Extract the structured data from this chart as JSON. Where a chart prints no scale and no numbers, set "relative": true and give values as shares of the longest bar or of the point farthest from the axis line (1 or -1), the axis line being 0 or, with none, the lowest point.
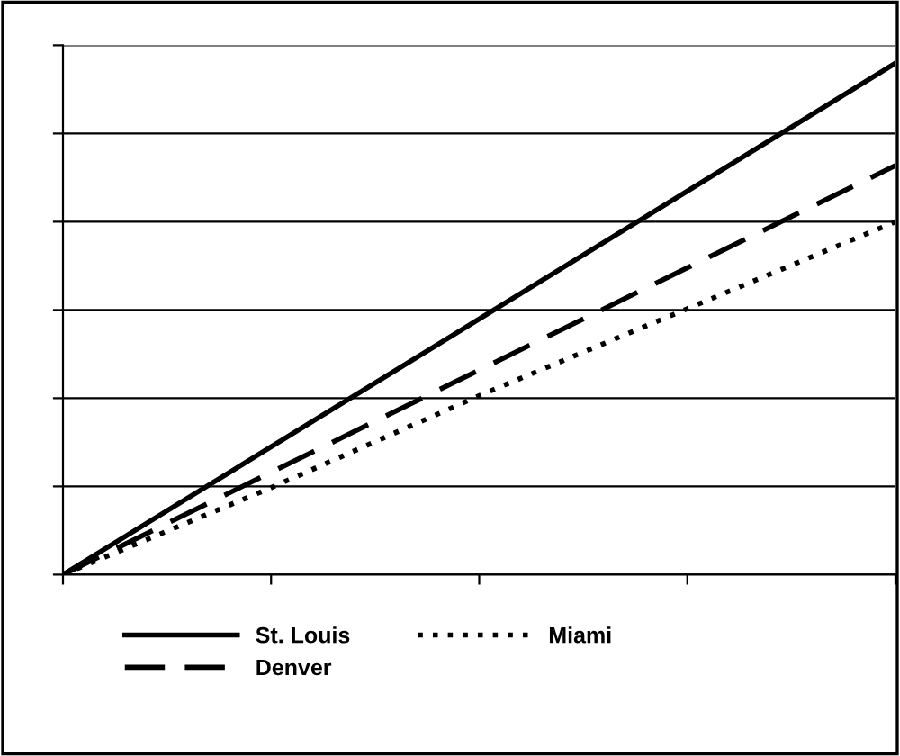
{
  "chart_data": {
    "type": "line",
    "relative": true,
    "categories": [
      null,
      null,
      null,
      null,
      null
    ],
    "series": [
      {
        "name": "St. Louis",
        "color": "#000000",
        "line_style": "solid",
        "values": [
          0,
          0.25,
          0.5,
          0.75,
          1
        ]
      },
      {
        "name": "Denver",
        "color": "#000000",
        "line_style": "dashed",
        "values": [
          0,
          0.2,
          0.4,
          0.6,
          0.8
        ]
      },
      {
        "name": "Miami",
        "color": "#000000",
        "line_style": "dotted",
        "values": [
          0,
          0.17,
          0.35,
          0.52,
          0.69
        ]
      }
    ],
    "grid": "y",
    "legend": "bottom",
    "marker": "none"
  }
}
